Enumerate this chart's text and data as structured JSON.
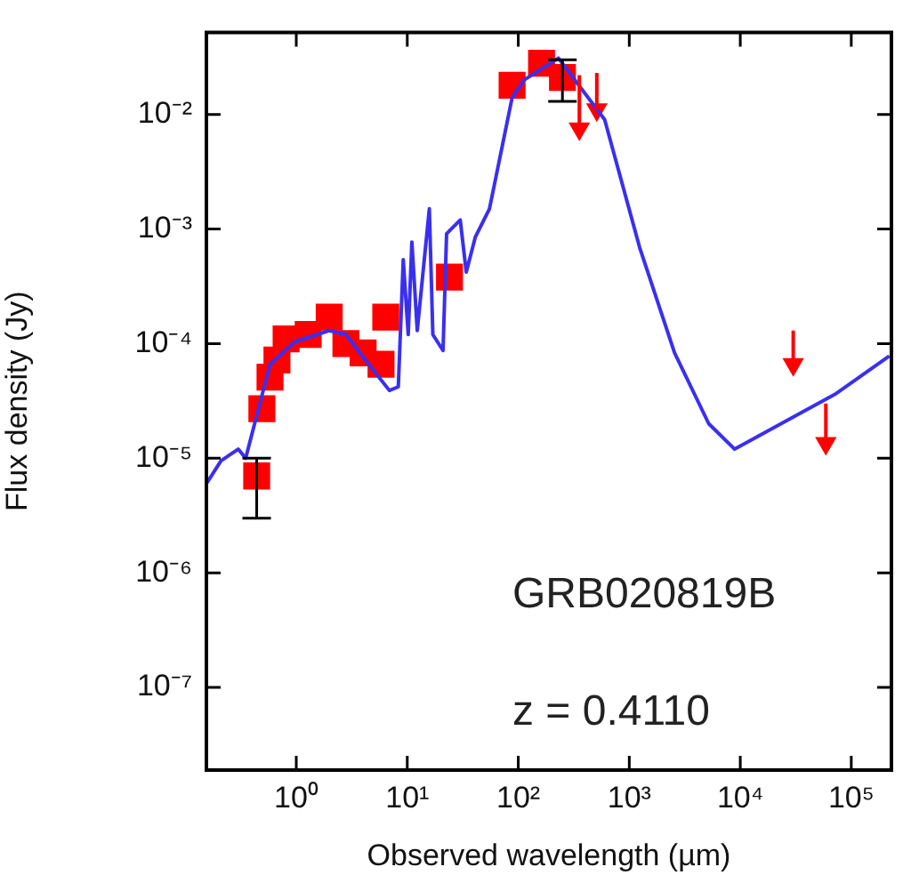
{
  "chart_data": {
    "type": "scatter",
    "xlabel": "Observed wavelength (µm)",
    "ylabel": "Flux density (Jy)",
    "log": "xy",
    "grid": false,
    "legend": false,
    "xlim": [
      0.155,
      230000
    ],
    "ylim": [
      1.9e-08,
      0.052
    ],
    "xticks": [
      {
        "value": 1,
        "label": "10⁰"
      },
      {
        "value": 10,
        "label": "10¹"
      },
      {
        "value": 100,
        "label": "10²"
      },
      {
        "value": 1000,
        "label": "10³"
      },
      {
        "value": 10000,
        "label": "10⁴"
      },
      {
        "value": 100000,
        "label": "10⁵"
      }
    ],
    "yticks": [
      {
        "value": 1e-07,
        "label": "10⁻⁷"
      },
      {
        "value": 1e-06,
        "label": "10⁻⁶"
      },
      {
        "value": 1e-05,
        "label": "10⁻⁵"
      },
      {
        "value": 0.0001,
        "label": "10⁻⁴"
      },
      {
        "value": 0.001,
        "label": "10⁻³"
      },
      {
        "value": 0.01,
        "label": "10⁻²"
      }
    ],
    "annotations": [
      "GRB020819B",
      "z = 0.4110"
    ],
    "series": [
      {
        "type": "line",
        "color": "#3a2ff0",
        "marker": "none",
        "line_style": "solid",
        "x": [
          0.155,
          0.21,
          0.3,
          0.35,
          0.58,
          0.97,
          1.98,
          2.8,
          4.5,
          6.9,
          8.3,
          9.2,
          10.2,
          11,
          12.3,
          15.8,
          17,
          21,
          22.6,
          30,
          34,
          41,
          55,
          88,
          113,
          230,
          600,
          1240,
          2560,
          5200,
          8900,
          71000,
          220000
        ],
        "values": [
          6e-06,
          9.5e-06,
          1.2e-05,
          1e-05,
          6.6e-05,
          0.000104,
          0.00013,
          0.00012,
          6.6e-05,
          3.9e-05,
          4.2e-05,
          0.00054,
          0.00012,
          0.00077,
          0.00013,
          0.0015,
          0.00012,
          8.7e-05,
          0.00091,
          0.0012,
          0.00042,
          0.00085,
          0.0015,
          0.014,
          0.02,
          0.031,
          0.009,
          0.00069,
          8.3e-05,
          2e-05,
          1.2e-05,
          3.6e-05,
          7.8e-05
        ]
      },
      {
        "type": "scatter",
        "color": "#ff0000",
        "marker": "square",
        "x": [
          0.44,
          0.49,
          0.58,
          0.67,
          0.81,
          1.28,
          1.98,
          2.8,
          4.0,
          5.8,
          6.4,
          24,
          88,
          162,
          250
        ],
        "values": [
          7e-06,
          2.7e-05,
          5.1e-05,
          7.2e-05,
          0.00011,
          0.00012,
          0.00017,
          0.0001,
          8.3e-05,
          6.6e-05,
          0.00017,
          0.00038,
          0.018,
          0.028,
          0.021
        ],
        "errors": [
          [
            3e-06,
            1e-05
          ],
          null,
          null,
          null,
          null,
          null,
          null,
          null,
          null,
          null,
          null,
          null,
          null,
          null,
          [
            0.013,
            0.03
          ]
        ]
      },
      {
        "type": "scatter",
        "color": "#ff0000",
        "marker": "triangle",
        "x": [
          355,
          510,
          30000,
          59000
        ],
        "values": [
          0.0075,
          0.011,
          6.6e-05,
          1.35e-05
        ],
        "errors": [
          [
            0.0075,
            0.022
          ],
          [
            0.011,
            0.023
          ],
          [
            6.6e-05,
            0.00013
          ],
          [
            1.35e-05,
            3e-05
          ]
        ]
      }
    ]
  }
}
